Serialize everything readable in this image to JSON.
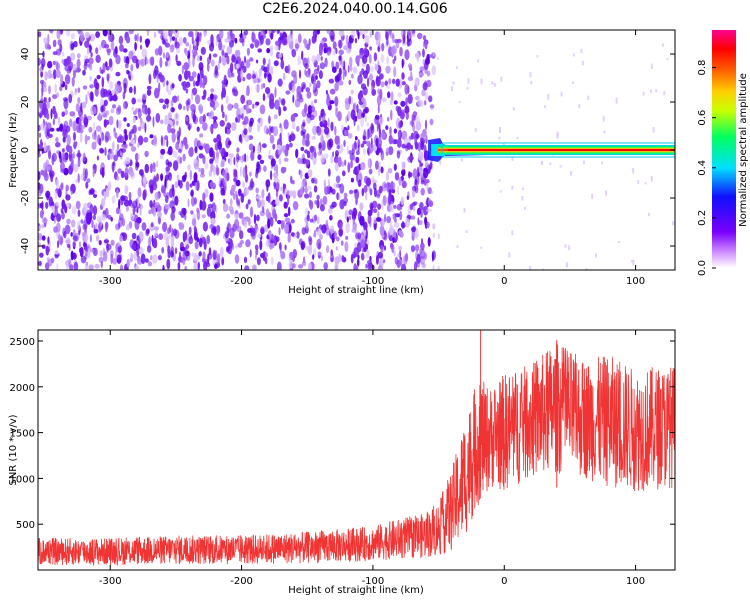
{
  "title": "C2E6.2024.040.00.14.G06",
  "colors": {
    "snr_line": "#f03434",
    "speckle": "#6a0dee",
    "background": "#ffffff",
    "axis": "#000000"
  },
  "chart_data": [
    {
      "type": "heatmap",
      "title": "C2E6.2024.040.00.14.G06",
      "xlabel": "Height of straight line (km)",
      "ylabel": "Frequency (Hz)",
      "xlim": [
        -355,
        130
      ],
      "ylim": [
        -50,
        50
      ],
      "x_ticks": [
        -300,
        -200,
        -100,
        0,
        100
      ],
      "y_ticks": [
        -40,
        -20,
        0,
        20,
        40
      ],
      "colorbar": {
        "label": "Normalized spectral amplitude",
        "range": [
          0.0,
          0.95
        ],
        "ticks": [
          0.0,
          0.2,
          0.4,
          0.6,
          0.8
        ],
        "colormap": "rainbow (white → violet → blue → cyan → green → yellow → orange → red → magenta)"
      },
      "features": {
        "noise_region_x": [
          -355,
          -58
        ],
        "noise_amplitude": 0.05,
        "signal_band_x": [
          -58,
          130
        ],
        "signal_band_frequency_hz": 0,
        "signal_band_peak_amplitude": 0.9
      }
    },
    {
      "type": "line",
      "xlabel": "Height of straight line (km)",
      "ylabel": "SNR (10 * v/v)",
      "xlim": [
        -355,
        130
      ],
      "ylim": [
        0,
        2620
      ],
      "x_ticks": [
        -300,
        -200,
        -100,
        0,
        100
      ],
      "y_ticks": [
        500,
        1000,
        1500,
        2000,
        2500
      ],
      "envelope": {
        "x": [
          -355,
          -300,
          -250,
          -200,
          -150,
          -100,
          -80,
          -60,
          -50,
          -40,
          -30,
          -20,
          -10,
          0,
          20,
          40,
          60,
          80,
          100,
          130
        ],
        "low": [
          50,
          50,
          60,
          60,
          70,
          100,
          120,
          130,
          150,
          200,
          350,
          700,
          900,
          850,
          1000,
          1050,
          1000,
          900,
          850,
          900
        ],
        "high": [
          350,
          350,
          380,
          380,
          420,
          480,
          560,
          620,
          750,
          1100,
          1650,
          2100,
          2000,
          2150,
          2250,
          2500,
          2300,
          2350,
          2200,
          2250
        ]
      },
      "peaks": [
        {
          "x": -18,
          "y": 2620
        },
        {
          "x": 40,
          "y": 2510
        }
      ]
    }
  ]
}
